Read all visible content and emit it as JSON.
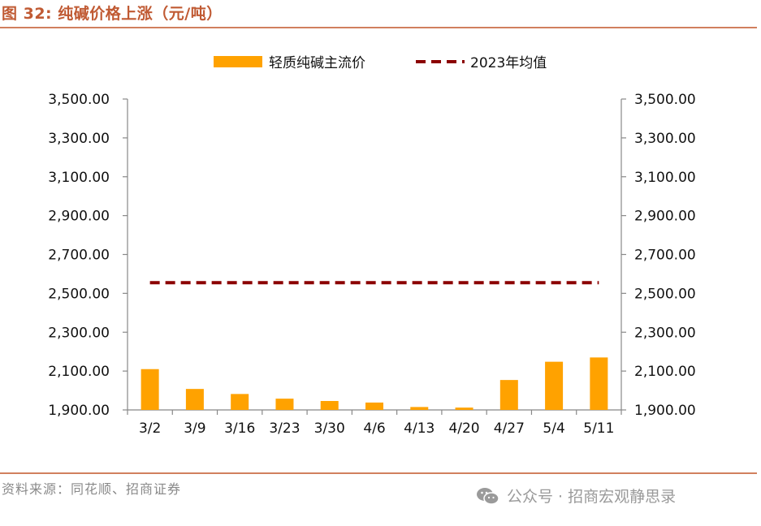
{
  "header": {
    "title": "图 32:  纯碱价格上涨（元/吨）"
  },
  "footer": {
    "source": "资料来源：同花顺、招商证券",
    "watermark": "公众号 · 招商宏观静思录",
    "watermark_icon": "wechat-icon"
  },
  "colors": {
    "bar": "#ffa200",
    "avg_line": "#8b0000",
    "title": "#c05a33",
    "rule": "#d1805e"
  },
  "chart_data": {
    "type": "bar",
    "categories": [
      "3/2",
      "3/9",
      "3/16",
      "3/23",
      "3/30",
      "4/6",
      "4/13",
      "4/20",
      "4/27",
      "5/4",
      "5/11"
    ],
    "series": [
      {
        "name": "轻质纯碱主流价",
        "type": "bar",
        "values": [
          2110,
          2008,
          1982,
          1958,
          1946,
          1938,
          1915,
          1912,
          2054,
          2148,
          2170
        ]
      },
      {
        "name": "2023年均值",
        "type": "line",
        "style": "dashed",
        "values": [
          2555,
          2555,
          2555,
          2555,
          2555,
          2555,
          2555,
          2555,
          2555,
          2555,
          2555
        ]
      }
    ],
    "yticks": [
      "1,900.00",
      "2,100.00",
      "2,300.00",
      "2,500.00",
      "2,700.00",
      "2,900.00",
      "3,100.00",
      "3,300.00",
      "3,500.00"
    ],
    "ylim": [
      1900,
      3500
    ],
    "y2lim": [
      1900,
      3500
    ],
    "legend_position": "top-center",
    "grid": false
  }
}
